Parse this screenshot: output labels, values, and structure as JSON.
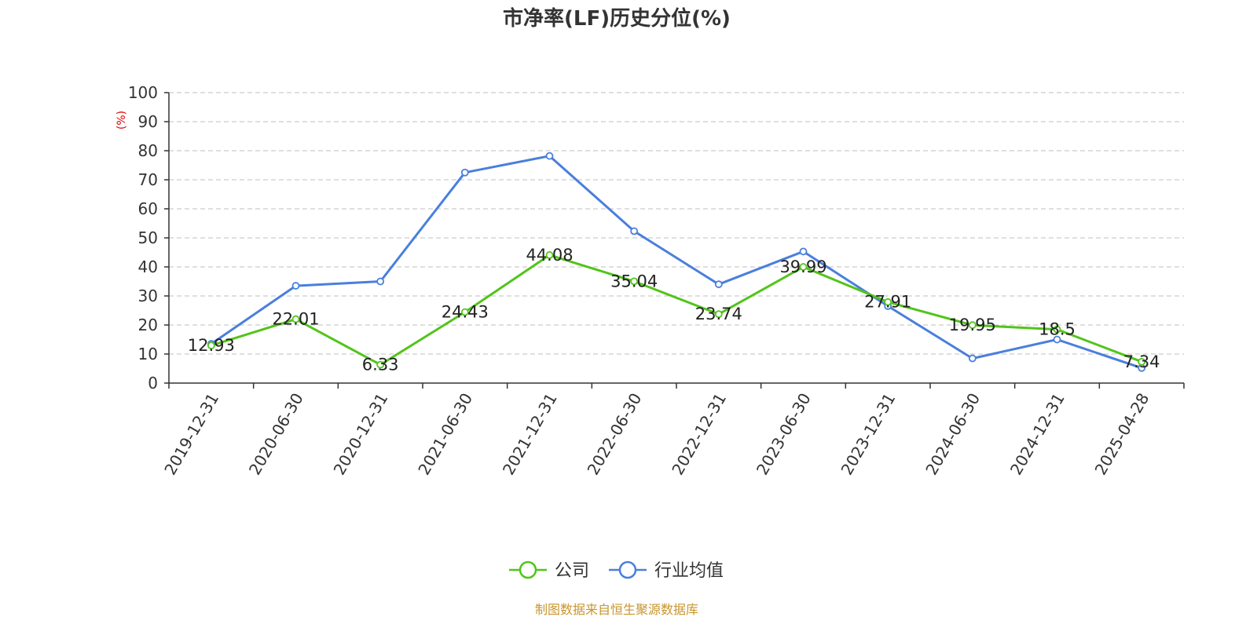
{
  "chart_data": {
    "type": "line",
    "title": "市净率(LF)历史分位(%)",
    "ylabel": "(%)",
    "ylim": [
      0,
      100
    ],
    "yticks": [
      0,
      10,
      20,
      30,
      40,
      50,
      60,
      70,
      80,
      90,
      100
    ],
    "grid": true,
    "legend_position": "bottom",
    "categories": [
      "2019-12-31",
      "2020-06-30",
      "2020-12-31",
      "2021-06-30",
      "2021-12-31",
      "2022-06-30",
      "2022-12-31",
      "2023-06-30",
      "2023-12-31",
      "2024-06-30",
      "2024-12-31",
      "2025-04-28"
    ],
    "series": [
      {
        "name": "公司",
        "color": "#52c41a",
        "values": [
          12.93,
          22.01,
          6.33,
          24.43,
          44.08,
          35.04,
          23.74,
          39.99,
          27.91,
          19.95,
          18.5,
          7.34
        ],
        "labels": [
          "12.93",
          "22.01",
          "6.33",
          "24.43",
          "44.08",
          "35.04",
          "23.74",
          "39.99",
          "27.91",
          "19.95",
          "18.5",
          "7.34"
        ]
      },
      {
        "name": "行业均值",
        "color": "#4a7fdc",
        "values": [
          13.5,
          33.5,
          35.0,
          72.5,
          78.2,
          52.3,
          34.0,
          45.3,
          26.5,
          8.5,
          15.0,
          5.2
        ]
      }
    ],
    "source": "制图数据来自恒生聚源数据库",
    "source_color": "#c8962e",
    "unit_color": "#e60000"
  }
}
